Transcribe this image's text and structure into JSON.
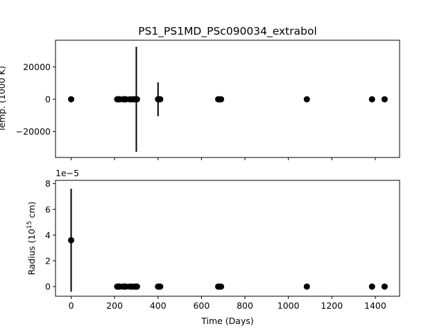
{
  "chart_data": [
    {
      "type": "scatter",
      "title": "PS1_PS1MD_PSc090034_extrabol",
      "xlabel": "",
      "ylabel": "Temp. (1000 K)",
      "xlim": [
        -72,
        1512
      ],
      "ylim": [
        -36000,
        36500
      ],
      "xticks": [
        0,
        200,
        400,
        600,
        800,
        1000,
        1200,
        1400
      ],
      "xtick_labels": [
        "",
        "",
        "",
        "",
        "",
        "",
        "",
        ""
      ],
      "yticks": [
        -20000,
        0,
        20000
      ],
      "ytick_labels": [
        "−20000",
        "0",
        "20000"
      ],
      "grid": false,
      "legend": "none",
      "points": [
        {
          "x": 0,
          "y": 0,
          "yerr": 0
        },
        {
          "x": 212,
          "y": 0,
          "yerr": 0
        },
        {
          "x": 216,
          "y": 0,
          "yerr": 0
        },
        {
          "x": 220,
          "y": 0,
          "yerr": 0
        },
        {
          "x": 224,
          "y": 0,
          "yerr": 0
        },
        {
          "x": 240,
          "y": 0,
          "yerr": 0
        },
        {
          "x": 244,
          "y": 0,
          "yerr": 0
        },
        {
          "x": 248,
          "y": 0,
          "yerr": 0
        },
        {
          "x": 252,
          "y": 0,
          "yerr": 0
        },
        {
          "x": 270,
          "y": 0,
          "yerr": 0
        },
        {
          "x": 280,
          "y": 0,
          "yerr": 0
        },
        {
          "x": 290,
          "y": 0,
          "yerr": 0
        },
        {
          "x": 296,
          "y": 0,
          "yerr": 0
        },
        {
          "x": 300,
          "y": 0,
          "yerr": 32500
        },
        {
          "x": 303,
          "y": 0,
          "yerr": 0
        },
        {
          "x": 400,
          "y": 0,
          "yerr": 10500
        },
        {
          "x": 405,
          "y": 0,
          "yerr": 0
        },
        {
          "x": 410,
          "y": 0,
          "yerr": 0
        },
        {
          "x": 677,
          "y": 0,
          "yerr": 0
        },
        {
          "x": 682,
          "y": 0,
          "yerr": 0
        },
        {
          "x": 690,
          "y": 0,
          "yerr": 0
        },
        {
          "x": 1085,
          "y": 0,
          "yerr": 0
        },
        {
          "x": 1385,
          "y": 0,
          "yerr": 0
        },
        {
          "x": 1443,
          "y": 0,
          "yerr": 0
        }
      ]
    },
    {
      "type": "scatter",
      "title": "",
      "xlabel": "Time (Days)",
      "ylabel": "Radius (10",
      "ylabel_sup": "15",
      "ylabel_end": " cm)",
      "offset_text": "1e−5",
      "xlim": [
        -72,
        1512
      ],
      "ylim": [
        -0.75,
        8.25
      ],
      "xticks": [
        0,
        200,
        400,
        600,
        800,
        1000,
        1200,
        1400
      ],
      "xtick_labels": [
        "0",
        "200",
        "400",
        "600",
        "800",
        "1000",
        "1200",
        "1400"
      ],
      "yticks": [
        0,
        2,
        4,
        6,
        8
      ],
      "ytick_labels": [
        "0",
        "2",
        "4",
        "6",
        "8"
      ],
      "grid": false,
      "legend": "none",
      "points": [
        {
          "x": 0,
          "y": 3.6,
          "yerr": 4.0
        },
        {
          "x": 212,
          "y": 0,
          "yerr": 0
        },
        {
          "x": 216,
          "y": 0,
          "yerr": 0
        },
        {
          "x": 220,
          "y": 0,
          "yerr": 0
        },
        {
          "x": 224,
          "y": 0,
          "yerr": 0
        },
        {
          "x": 240,
          "y": 0,
          "yerr": 0
        },
        {
          "x": 244,
          "y": 0,
          "yerr": 0
        },
        {
          "x": 248,
          "y": 0,
          "yerr": 0
        },
        {
          "x": 252,
          "y": 0,
          "yerr": 0
        },
        {
          "x": 270,
          "y": 0,
          "yerr": 0
        },
        {
          "x": 280,
          "y": 0,
          "yerr": 0
        },
        {
          "x": 290,
          "y": 0,
          "yerr": 0
        },
        {
          "x": 296,
          "y": 0,
          "yerr": 0
        },
        {
          "x": 300,
          "y": 0,
          "yerr": 0
        },
        {
          "x": 303,
          "y": 0,
          "yerr": 0
        },
        {
          "x": 400,
          "y": 0,
          "yerr": 0
        },
        {
          "x": 405,
          "y": 0,
          "yerr": 0
        },
        {
          "x": 410,
          "y": 0,
          "yerr": 0
        },
        {
          "x": 677,
          "y": 0,
          "yerr": 0
        },
        {
          "x": 682,
          "y": 0,
          "yerr": 0
        },
        {
          "x": 690,
          "y": 0,
          "yerr": 0
        },
        {
          "x": 1085,
          "y": 0,
          "yerr": 0
        },
        {
          "x": 1385,
          "y": 0,
          "yerr": 0
        },
        {
          "x": 1443,
          "y": 0,
          "yerr": 0
        }
      ]
    }
  ]
}
